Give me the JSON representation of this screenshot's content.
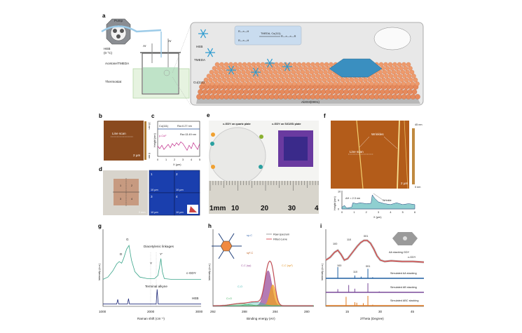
{
  "panels": {
    "a": {
      "label": "a",
      "pump": "Pump",
      "heb_source": "HEB",
      "heb_temp": "(0 °C)",
      "ar_left": "Ar",
      "ar_right": "Ar",
      "solvent": "Acetone/TMEDA",
      "thermostat": "Thermostat",
      "heb": "HEB",
      "tmeda": "TMEDA",
      "cu": "Cu(111)",
      "substrate": "Al2O3(0001)",
      "reaction_reactant1": "R—≡—H",
      "reaction_reactant2": "R—≡—H",
      "reaction_conditions": "TMEDA,  Cu(111)",
      "reaction_product": "R—≡—≡—R"
    },
    "b": {
      "label": "b",
      "line_scan": "Line scan",
      "scale": "2 µm",
      "cbar_max": "15 nm",
      "cbar_min": "0 nm"
    },
    "c": {
      "label": "c",
      "cu_label": "Cu(111)",
      "cu_ra": "Ra=0.27 nm",
      "pcuf_label": "p-CuF",
      "pcuf_ra": "Ra=13.49 nm",
      "ylabel": "Height (nm)",
      "xlabel": "X (µm)",
      "xticks": [
        "0",
        "1",
        "2",
        "3",
        "4",
        "5"
      ]
    },
    "d": {
      "label": "d",
      "quadrants": [
        "1",
        "2",
        "3",
        "4"
      ],
      "scale": "2 mm",
      "maps": [
        {
          "n": "1",
          "scale": "10 µm"
        },
        {
          "n": "2",
          "scale": "10 µm"
        },
        {
          "n": "3",
          "scale": "10 µm"
        },
        {
          "n": "4",
          "scale": "10 µm"
        }
      ]
    },
    "e": {
      "label": "e",
      "quartz": "c-GDY on quartz plate",
      "sio2": "c-GDY on SiO2/Si plate",
      "ruler": [
        "1mm",
        "10",
        "20",
        "30",
        "4"
      ]
    },
    "f": {
      "label": "f",
      "wrinkles": "Wrinkles",
      "line_scan": "Line scan",
      "scale": "2 µm",
      "cbar_max": "45 nm",
      "cbar_min": "0 nm",
      "delta_h": "ΔH = 2.3 nm",
      "wrinkle": "Wrinkle",
      "ylabel": "Height (nm)",
      "xlabel": "X (µm)",
      "yticks": [
        "0",
        "5",
        "10"
      ],
      "xticks": [
        "0",
        "1",
        "2",
        "3",
        "4",
        "5",
        "6"
      ]
    },
    "g": {
      "label": "g"
    },
    "h": {
      "label": "h"
    },
    "i": {
      "label": "i"
    }
  },
  "colors": {
    "cgdy_raman": "#3aa58a",
    "heb_raman": "#1f2a7a",
    "fitted": "#d62f3a",
    "raw": "#888888",
    "sp": "#9b4f9b",
    "sp2": "#f0a020",
    "co": "#3cb6b0",
    "c_o": "#40b060",
    "aa": "#1f5fa0",
    "ab": "#7a4a9a",
    "abc": "#e07a20",
    "xrd": "#e02020"
  },
  "chart_data": [
    {
      "panel": "c",
      "type": "line",
      "xlabel": "X (µm)",
      "ylabel": "Height (nm)",
      "xlim": [
        0,
        5
      ],
      "series": [
        {
          "name": "Cu(111)",
          "x": [
            0,
            1,
            2,
            3,
            4,
            5
          ],
          "y": [
            0,
            0,
            0,
            0,
            0,
            0
          ]
        },
        {
          "name": "p-CuF",
          "x": [
            0,
            0.25,
            0.5,
            0.75,
            1,
            1.25,
            1.5,
            1.75,
            2,
            2.25,
            2.5,
            2.75,
            3,
            3.25,
            3.5,
            3.75,
            4,
            4.25,
            4.5,
            4.75,
            5
          ],
          "y": [
            -14,
            -20,
            -12,
            -22,
            -16,
            -10,
            -18,
            -8,
            -14,
            -6,
            -12,
            -4,
            -8,
            -16,
            -24,
            -12,
            -20,
            -6,
            -14,
            -22,
            -8
          ]
        }
      ]
    },
    {
      "panel": "f",
      "type": "area",
      "xlabel": "X (µm)",
      "ylabel": "Height (nm)",
      "xlim": [
        0,
        6
      ],
      "ylim": [
        0,
        10
      ],
      "x": [
        0,
        0.2,
        0.4,
        0.8,
        0.9,
        1.2,
        1.5,
        2,
        2.4,
        2.5,
        2.7,
        3,
        3.5,
        4,
        4.5,
        5,
        5.5,
        6
      ],
      "y": [
        1,
        2,
        0.5,
        1,
        3.5,
        3,
        3.5,
        3,
        3.2,
        8,
        6,
        4,
        3,
        2.5,
        3.5,
        2.5,
        3,
        2.5
      ]
    },
    {
      "panel": "g",
      "type": "line",
      "xlabel": "Raman shift (cm⁻¹)",
      "ylabel": "Intensity (a.u.)",
      "xlim": [
        1000,
        3000
      ],
      "xticks": [
        "1000",
        "2000",
        "3000"
      ],
      "annotations": [
        "G",
        "D",
        "Diacetylenic linkages",
        "Y'",
        "Y",
        "Terminal alkyne"
      ],
      "series": [
        {
          "name": "c-GDY",
          "x": [
            1000,
            1100,
            1200,
            1280,
            1330,
            1380,
            1420,
            1480,
            1530,
            1580,
            1650,
            1750,
            1900,
            2050,
            2120,
            2150,
            2180,
            2210,
            2250,
            2400,
            2700,
            3000
          ],
          "y": [
            0.35,
            0.38,
            0.46,
            0.55,
            0.58,
            0.56,
            0.62,
            0.74,
            0.79,
            0.6,
            0.45,
            0.38,
            0.36,
            0.36,
            0.4,
            0.5,
            0.62,
            0.45,
            0.36,
            0.35,
            0.35,
            0.35
          ]
        },
        {
          "name": "HEB",
          "x": [
            1000,
            1280,
            1300,
            1320,
            1500,
            1520,
            1540,
            2085,
            2105,
            2125,
            3000
          ],
          "y": [
            0.03,
            0.03,
            0.09,
            0.03,
            0.03,
            0.1,
            0.03,
            0.03,
            0.22,
            0.03,
            0.03
          ]
        }
      ]
    },
    {
      "panel": "h",
      "type": "line",
      "xlabel": "Binding energy (eV)",
      "ylabel": "Intensity (a.u.)",
      "xlim": [
        292,
        279
      ],
      "xticks": [
        "292",
        "288",
        "284",
        "280"
      ],
      "legend": [
        "Raw specrum",
        "Fitted curve"
      ],
      "legend_position": "top-right",
      "labels": {
        "sp_c": "sp-C",
        "sp2_c": "sp²-C"
      },
      "components": [
        {
          "name": "C-C (sp)",
          "center": 284.9,
          "height": 0.5,
          "fwhm": 1.1
        },
        {
          "name": "C-C (sp²)",
          "center": 284.3,
          "height": 0.3,
          "fwhm": 0.9
        },
        {
          "name": "C-O",
          "center": 286.5,
          "height": 0.05,
          "fwhm": 2.0
        },
        {
          "name": "C=O",
          "center": 288.5,
          "height": 0.03,
          "fwhm": 2.5
        }
      ]
    },
    {
      "panel": "i",
      "type": "line",
      "xlabel": "2Theta (Degree)",
      "ylabel": "Intensity (a.u.)",
      "xlim": [
        5,
        50
      ],
      "xticks": [
        "15",
        "30",
        "45"
      ],
      "xrd": {
        "name": "c-GDY",
        "note": "AA stacking GDY",
        "peak_labels": [
          "100",
          "110",
          "001"
        ],
        "x": [
          5,
          7,
          9,
          10.5,
          12,
          13.5,
          15,
          16.5,
          18,
          19.5,
          21,
          22.5,
          24,
          25.5,
          27,
          28.5,
          30,
          32,
          35,
          40,
          45,
          50
        ],
        "y": [
          0.66,
          0.7,
          0.77,
          0.8,
          0.74,
          0.66,
          0.68,
          0.74,
          0.8,
          0.86,
          0.91,
          0.94,
          0.94,
          0.9,
          0.82,
          0.72,
          0.66,
          0.64,
          0.65,
          0.64,
          0.64,
          0.63
        ]
      },
      "simulated": [
        {
          "name": "Simulated AA stacking",
          "peak_labels": [
            "100",
            "110",
            "001"
          ],
          "peaks": [
            [
              10.5,
              1
            ],
            [
              18.3,
              0.25
            ],
            [
              21.2,
              0.15
            ],
            [
              24.3,
              0.85
            ],
            [
              26.5,
              0.1
            ]
          ]
        },
        {
          "name": "Simulated AB stacking",
          "peaks": [
            [
              10.5,
              0.35
            ],
            [
              15.5,
              0.8
            ],
            [
              18.3,
              0.4
            ],
            [
              24.3,
              1
            ],
            [
              29.5,
              0.1
            ]
          ]
        },
        {
          "name": "Simulated ABC stacking",
          "peaks": [
            [
              14.3,
              0.9
            ],
            [
              18.3,
              0.35
            ],
            [
              19.2,
              0.3
            ],
            [
              22.2,
              0.25
            ],
            [
              24.3,
              1
            ],
            [
              26.5,
              0.1
            ]
          ]
        }
      ]
    }
  ]
}
